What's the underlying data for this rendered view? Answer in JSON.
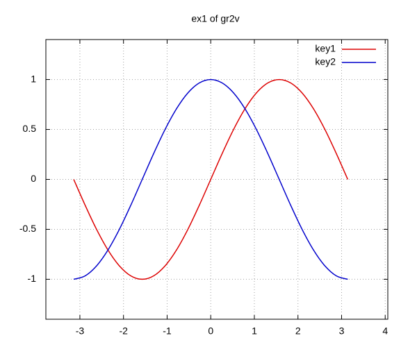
{
  "chart_data": {
    "type": "line",
    "title": "ex1 of gr2v",
    "x": [
      -3.1416,
      -2.8798,
      -2.618,
      -2.3562,
      -2.0944,
      -1.8326,
      -1.5708,
      -1.309,
      -1.0472,
      -0.7854,
      -0.5236,
      -0.2618,
      0,
      0.2618,
      0.5236,
      0.7854,
      1.0472,
      1.309,
      1.5708,
      1.8326,
      2.0944,
      2.3562,
      2.618,
      2.8798,
      3.1416
    ],
    "series": [
      {
        "name": "key1",
        "color": "#dd0000",
        "values": [
          0,
          -0.2588,
          -0.5,
          -0.7071,
          -0.866,
          -0.9659,
          -1,
          -0.9659,
          -0.866,
          -0.7071,
          -0.5,
          -0.2588,
          0,
          0.2588,
          0.5,
          0.7071,
          0.866,
          0.9659,
          1,
          0.9659,
          0.866,
          0.7071,
          0.5,
          0.2588,
          0
        ]
      },
      {
        "name": "key2",
        "color": "#0000cc",
        "values": [
          -1,
          -0.9659,
          -0.866,
          -0.7071,
          -0.5,
          -0.2588,
          0,
          0.2588,
          0.5,
          0.7071,
          0.866,
          0.9659,
          1,
          0.9659,
          0.866,
          0.7071,
          0.5,
          0.2588,
          0,
          -0.2588,
          -0.5,
          -0.7071,
          -0.866,
          -0.9659,
          -1
        ]
      }
    ],
    "xlim": [
      -3.78,
      4.06
    ],
    "xticks": [
      -3,
      -2,
      -1,
      0,
      1,
      2,
      3,
      4
    ],
    "ylim": [
      -1.4,
      1.4
    ],
    "yticks": [
      -1,
      -0.5,
      0,
      0.5,
      1
    ],
    "grid": true,
    "legend": "top-right"
  }
}
